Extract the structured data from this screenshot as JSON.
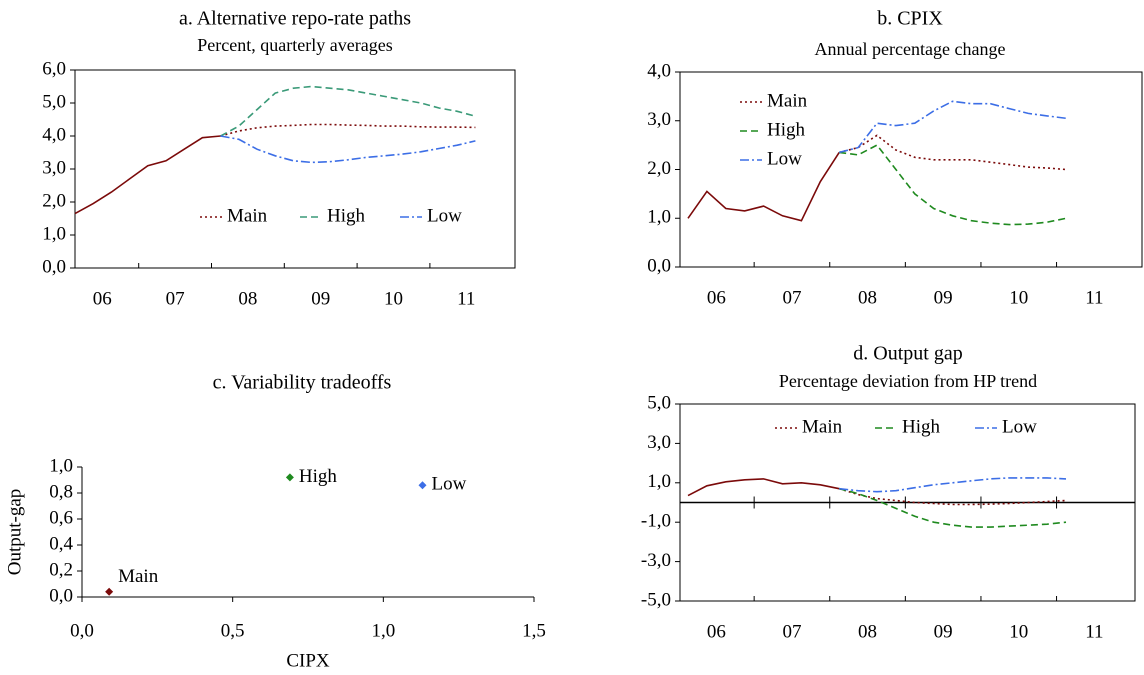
{
  "chart_data": [
    {
      "type": "line",
      "title": "a. Alternative repo-rate paths",
      "subtitle": "Percent, quarterly averages",
      "categories": [
        "06",
        null,
        null,
        null,
        "07",
        null,
        null,
        null,
        "08",
        null,
        null,
        null,
        "09",
        null,
        null,
        null,
        "10",
        null,
        null,
        null,
        "11",
        null,
        null,
        null
      ],
      "ylim": [
        0,
        6
      ],
      "yticks": [
        {
          "value": 0,
          "label": "0,0"
        },
        {
          "value": 1,
          "label": "1,0"
        },
        {
          "value": 2,
          "label": "2,0"
        },
        {
          "value": 3,
          "label": "3,0"
        },
        {
          "value": 4,
          "label": "4,0"
        },
        {
          "value": 5,
          "label": "5,0"
        },
        {
          "value": 6,
          "label": "6,0"
        }
      ],
      "legend": "lower center",
      "series": [
        {
          "color": "#7b0a0a",
          "values": [
            1.65,
            1.95,
            2.3,
            2.7,
            3.1,
            3.25,
            3.6,
            3.95,
            4.0,
            null,
            null,
            null,
            null,
            null,
            null,
            null,
            null,
            null,
            null,
            null,
            null,
            null,
            null,
            null
          ]
        },
        {
          "name": "Main",
          "color": "#7b0a0a",
          "dash": "dotted",
          "values": [
            null,
            null,
            null,
            null,
            null,
            null,
            null,
            null,
            4.0,
            4.15,
            4.25,
            4.3,
            4.32,
            4.35,
            4.35,
            4.33,
            4.32,
            4.3,
            4.3,
            4.28,
            4.27,
            4.27,
            4.26,
            null
          ]
        },
        {
          "name": "High",
          "color": "#3a9a78",
          "dash": "dashed",
          "values": [
            null,
            null,
            null,
            null,
            null,
            null,
            null,
            null,
            4.0,
            4.3,
            4.8,
            5.3,
            5.45,
            5.5,
            5.45,
            5.4,
            5.3,
            5.2,
            5.1,
            5.0,
            4.85,
            4.75,
            4.6,
            null
          ]
        },
        {
          "name": "Low",
          "color": "#3c6ee6",
          "dash": "dashdot",
          "values": [
            null,
            null,
            null,
            null,
            null,
            null,
            null,
            null,
            4.0,
            3.9,
            3.6,
            3.4,
            3.25,
            3.2,
            3.22,
            3.28,
            3.35,
            3.4,
            3.45,
            3.52,
            3.62,
            3.72,
            3.85,
            null
          ]
        }
      ]
    },
    {
      "type": "line",
      "title": "b. CPIX",
      "subtitle": "Annual percentage change",
      "categories": [
        "06",
        null,
        null,
        null,
        "07",
        null,
        null,
        null,
        "08",
        null,
        null,
        null,
        "09",
        null,
        null,
        null,
        "10",
        null,
        null,
        null,
        "11",
        null,
        null,
        null
      ],
      "ylim": [
        0,
        4
      ],
      "yticks": [
        {
          "value": 0,
          "label": "0,0"
        },
        {
          "value": 1,
          "label": "1,0"
        },
        {
          "value": 2,
          "label": "2,0"
        },
        {
          "value": 3,
          "label": "3,0"
        },
        {
          "value": 4,
          "label": "4,0"
        }
      ],
      "legend": "upper left",
      "series": [
        {
          "color": "#7b0a0a",
          "values": [
            1.0,
            1.55,
            1.2,
            1.15,
            1.25,
            1.05,
            0.95,
            1.75,
            2.35,
            null,
            null,
            null,
            null,
            null,
            null,
            null,
            null,
            null,
            null,
            null,
            null,
            null,
            null,
            null
          ]
        },
        {
          "name": "Main",
          "color": "#7b0a0a",
          "dash": "dotted",
          "values": [
            null,
            null,
            null,
            null,
            null,
            null,
            null,
            null,
            2.35,
            2.45,
            2.7,
            2.4,
            2.25,
            2.2,
            2.2,
            2.2,
            2.15,
            2.1,
            2.05,
            2.03,
            2.0,
            null,
            null,
            null
          ]
        },
        {
          "name": "High",
          "color": "#1f8a1f",
          "dash": "dashed",
          "values": [
            null,
            null,
            null,
            null,
            null,
            null,
            null,
            null,
            2.35,
            2.3,
            2.5,
            2.0,
            1.5,
            1.2,
            1.05,
            0.95,
            0.9,
            0.87,
            0.88,
            0.92,
            1.0,
            null,
            null,
            null
          ]
        },
        {
          "name": "Low",
          "color": "#3c6ee6",
          "dash": "dashdot",
          "values": [
            null,
            null,
            null,
            null,
            null,
            null,
            null,
            null,
            2.35,
            2.45,
            2.95,
            2.9,
            2.95,
            3.2,
            3.4,
            3.35,
            3.35,
            3.25,
            3.15,
            3.1,
            3.05,
            null,
            null,
            null
          ]
        }
      ]
    },
    {
      "type": "scatter",
      "title": "c. Variability tradeoffs",
      "x_label": "CIPX",
      "y_label": "Output-gap",
      "xlim": [
        0,
        1.5
      ],
      "xticks": [
        {
          "value": 0,
          "label": "0,0"
        },
        {
          "value": 0.5,
          "label": "0,5"
        },
        {
          "value": 1,
          "label": "1,0"
        },
        {
          "value": 1.5,
          "label": "1,5"
        }
      ],
      "ylim": [
        0,
        1
      ],
      "yticks": [
        {
          "value": 0,
          "label": "0,0"
        },
        {
          "value": 0.2,
          "label": "0,2"
        },
        {
          "value": 0.4,
          "label": "0,4"
        },
        {
          "value": 0.6,
          "label": "0,6"
        },
        {
          "value": 0.8,
          "label": "0,8"
        },
        {
          "value": 1,
          "label": "1,0"
        }
      ],
      "series": [
        {
          "name": "Main",
          "color": "#7b0a0a",
          "x": [
            0.09
          ],
          "values": [
            0.04
          ]
        },
        {
          "name": "High",
          "color": "#1f8a1f",
          "x": [
            0.69
          ],
          "values": [
            0.92
          ]
        },
        {
          "name": "Low",
          "color": "#3c6ee6",
          "x": [
            1.13
          ],
          "values": [
            0.86
          ]
        }
      ]
    },
    {
      "type": "line",
      "title": "d. Output gap",
      "subtitle": "Percentage deviation from HP trend",
      "categories": [
        "06",
        null,
        null,
        null,
        "07",
        null,
        null,
        null,
        "08",
        null,
        null,
        null,
        "09",
        null,
        null,
        null,
        "10",
        null,
        null,
        null,
        "11",
        null,
        null,
        null
      ],
      "ylim": [
        -5,
        5
      ],
      "yticks": [
        {
          "value": -5,
          "label": "-5,0"
        },
        {
          "value": -3,
          "label": "-3,0"
        },
        {
          "value": -1,
          "label": "-1,0"
        },
        {
          "value": 1,
          "label": "1,0"
        },
        {
          "value": 3,
          "label": "3,0"
        },
        {
          "value": 5,
          "label": "5,0"
        }
      ],
      "zero_line": true,
      "legend": "upper center",
      "series": [
        {
          "color": "#7b0a0a",
          "values": [
            0.35,
            0.85,
            1.05,
            1.15,
            1.2,
            0.95,
            1.0,
            0.9,
            0.7,
            null,
            null,
            null,
            null,
            null,
            null,
            null,
            null,
            null,
            null,
            null,
            null,
            null,
            null,
            null
          ]
        },
        {
          "name": "Main",
          "color": "#7b0a0a",
          "dash": "dotted",
          "values": [
            null,
            null,
            null,
            null,
            null,
            null,
            null,
            null,
            0.7,
            0.4,
            0.2,
            0.1,
            0.0,
            -0.05,
            -0.1,
            -0.1,
            -0.08,
            -0.05,
            0.0,
            0.05,
            0.1,
            null,
            null,
            null
          ]
        },
        {
          "name": "High",
          "color": "#1f8a1f",
          "dash": "dashed",
          "values": [
            null,
            null,
            null,
            null,
            null,
            null,
            null,
            null,
            0.7,
            0.45,
            0.1,
            -0.3,
            -0.7,
            -1.0,
            -1.15,
            -1.25,
            -1.25,
            -1.2,
            -1.15,
            -1.1,
            -1.0,
            null,
            null,
            null
          ]
        },
        {
          "name": "Low",
          "color": "#3c6ee6",
          "dash": "dashdot",
          "values": [
            null,
            null,
            null,
            null,
            null,
            null,
            null,
            null,
            0.7,
            0.6,
            0.55,
            0.6,
            0.75,
            0.9,
            1.0,
            1.1,
            1.2,
            1.25,
            1.25,
            1.25,
            1.2,
            null,
            null,
            null
          ]
        }
      ]
    }
  ]
}
